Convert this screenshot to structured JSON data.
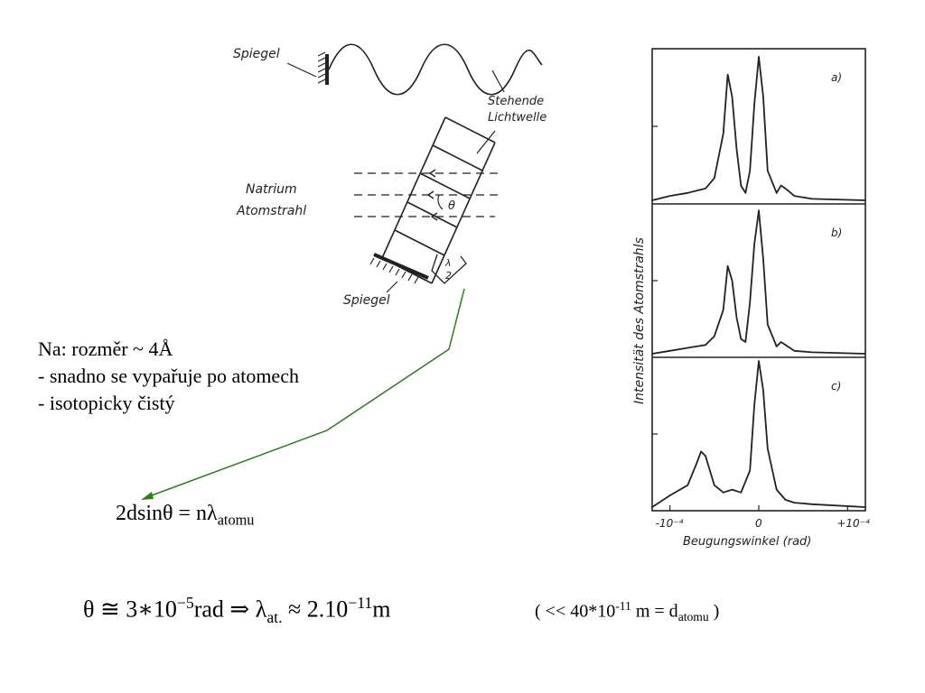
{
  "diagram": {
    "mirror_top_label": "Spiegel",
    "wave_label_line1": "Stehende",
    "wave_label_line2": "Lichtwelle",
    "beam_label_line1": "Natrium",
    "beam_label_line2": "Atomstrahl",
    "angle_label": "θ",
    "mirror_bottom_label": "Spiegel",
    "lambda_half_num": "λ",
    "lambda_half_den": "2"
  },
  "plot": {
    "ylabel": "Intensität des Atomstrahls",
    "xlabel": "Beugungswinkel (rad)",
    "panel_labels": [
      "a)",
      "b)",
      "c)"
    ],
    "x_ticks": [
      "-10⁻⁴",
      "0",
      "+10⁻⁴"
    ]
  },
  "chart_data": {
    "type": "line",
    "xlabel": "Beugungswinkel (rad)",
    "ylabel": "Intensität des Atomstrahls",
    "xlim": [
      -0.00012,
      0.00012
    ],
    "panels": [
      {
        "label": "a)",
        "x": [
          -0.00012,
          -0.0001,
          -8e-05,
          -6e-05,
          -5e-05,
          -4e-05,
          -3.5e-05,
          -3e-05,
          -2.5e-05,
          -2e-05,
          -1.5e-05,
          -1e-05,
          -5e-06,
          0,
          5e-06,
          1e-05,
          2e-05,
          2.5e-05,
          3e-05,
          4e-05,
          6e-05,
          0.00012
        ],
        "y": [
          0.0,
          0.03,
          0.05,
          0.08,
          0.15,
          0.45,
          0.85,
          0.7,
          0.35,
          0.1,
          0.05,
          0.2,
          0.65,
          0.97,
          0.7,
          0.2,
          0.05,
          0.1,
          0.08,
          0.03,
          0.01,
          0.0
        ]
      },
      {
        "label": "b)",
        "x": [
          -0.00012,
          -0.0001,
          -8e-05,
          -6e-05,
          -5e-05,
          -4e-05,
          -3.5e-05,
          -3e-05,
          -2.5e-05,
          -2e-05,
          -1.5e-05,
          -1e-05,
          -5e-06,
          0,
          5e-06,
          1e-05,
          2e-05,
          2.5e-05,
          3e-05,
          4e-05,
          6e-05,
          0.00012
        ],
        "y": [
          0.0,
          0.02,
          0.04,
          0.06,
          0.12,
          0.3,
          0.6,
          0.5,
          0.25,
          0.1,
          0.08,
          0.35,
          0.75,
          0.98,
          0.65,
          0.2,
          0.05,
          0.08,
          0.06,
          0.02,
          0.01,
          0.0
        ]
      },
      {
        "label": "c)",
        "x": [
          -0.00012,
          -0.0001,
          -8e-05,
          -7e-05,
          -6.5e-05,
          -6e-05,
          -5e-05,
          -4e-05,
          -3e-05,
          -2e-05,
          -1e-05,
          -5e-06,
          0,
          5e-06,
          1e-05,
          2e-05,
          3e-05,
          4e-05,
          6e-05,
          0.00012
        ],
        "y": [
          0.0,
          0.08,
          0.15,
          0.3,
          0.38,
          0.35,
          0.15,
          0.1,
          0.12,
          0.1,
          0.25,
          0.7,
          1.0,
          0.8,
          0.4,
          0.12,
          0.05,
          0.03,
          0.02,
          0.0
        ]
      }
    ]
  },
  "notes": {
    "line1": "Na: rozměr ~ 4Å",
    "line2": "- snadno se vypařuje po atomech",
    "line3": "- isotopicky čistý"
  },
  "formula1": {
    "main": "2dsinθ = nλ",
    "sub": "atomu"
  },
  "formula2": {
    "part1": "θ ≅ 3∗10",
    "sup1": "−5",
    "part2": "rad ⇒ λ",
    "sub1": "at.",
    "part3": " ≈ 2.10",
    "sup2": "−11",
    "part4": "m"
  },
  "formula3": {
    "part1": "( << 40*10",
    "sup": "-11",
    "part2": " m = d",
    "sub": "atomu",
    "part3": " )"
  },
  "colors": {
    "arrow": "#2e7d1f",
    "ink": "#222222"
  }
}
